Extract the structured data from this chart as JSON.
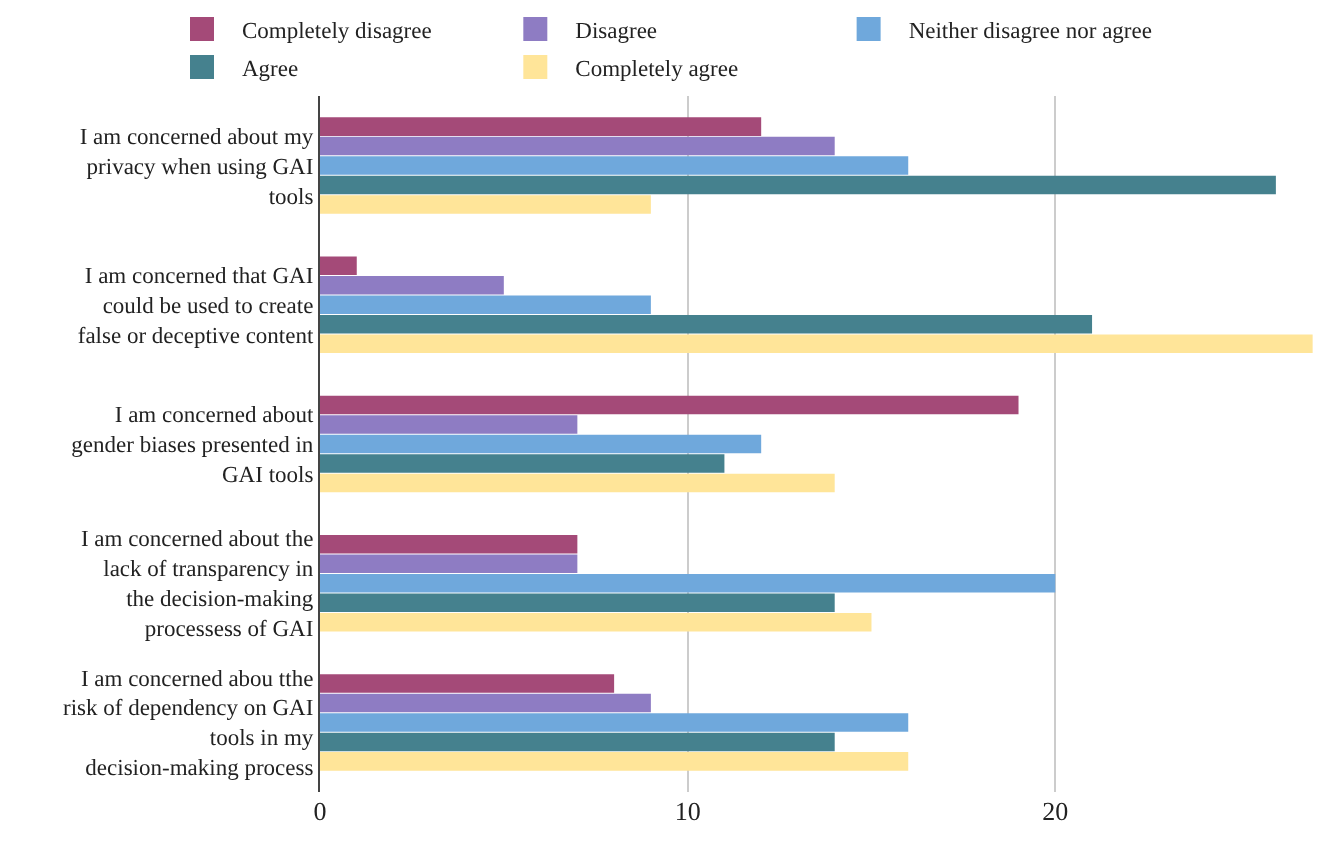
{
  "chart_data": {
    "type": "bar",
    "orientation": "horizontal",
    "categories": [
      "I am concerned about my privacy when using GAI tools",
      "I am concerned that GAI could be used to create false or deceptive content",
      "I am concerned about gender biases presented in GAI tools",
      "I am concerned about the lack of transparency in the decision-making processess of GAI",
      "I am concerned abou tthe risk of dependency on GAI tools in my decision-making process"
    ],
    "series": [
      {
        "name": "Completely disagree",
        "color": "#a44a78",
        "values": [
          12,
          1,
          19,
          7,
          8
        ]
      },
      {
        "name": "Disagree",
        "color": "#8e7cc3",
        "values": [
          14,
          5,
          7,
          7,
          9
        ]
      },
      {
        "name": "Neither disagree nor agree",
        "color": "#6fa8dc",
        "values": [
          16,
          9,
          12,
          20,
          16
        ]
      },
      {
        "name": "Agree",
        "color": "#45818e",
        "values": [
          26,
          21,
          11,
          14,
          14
        ]
      },
      {
        "name": "Completely agree",
        "color": "#ffe599",
        "values": [
          9,
          27,
          14,
          15,
          16
        ]
      }
    ],
    "xlim": [
      0,
      27.2
    ],
    "xticks": [
      0,
      10,
      20
    ],
    "grid": "x",
    "legend": "top"
  }
}
